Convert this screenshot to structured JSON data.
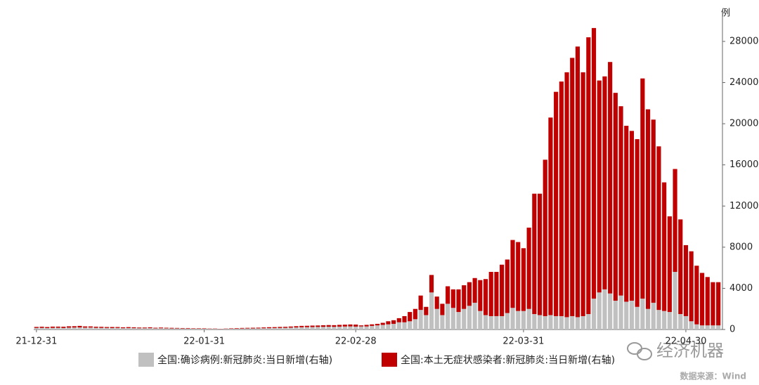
{
  "chart_data": {
    "type": "stacked_bar",
    "y_unit": "例",
    "categories": [
      "21-12-31",
      null,
      null,
      null,
      null,
      null,
      null,
      null,
      null,
      null,
      null,
      null,
      null,
      null,
      null,
      null,
      null,
      null,
      null,
      null,
      null,
      null,
      null,
      null,
      null,
      null,
      null,
      null,
      null,
      null,
      null,
      "22-01-31",
      null,
      null,
      null,
      null,
      null,
      null,
      null,
      null,
      null,
      null,
      null,
      null,
      null,
      null,
      null,
      null,
      null,
      null,
      null,
      null,
      null,
      null,
      null,
      null,
      null,
      null,
      null,
      "22-02-28",
      null,
      null,
      null,
      null,
      null,
      null,
      null,
      null,
      null,
      null,
      null,
      null,
      null,
      null,
      null,
      null,
      null,
      null,
      null,
      null,
      null,
      null,
      null,
      null,
      null,
      null,
      null,
      null,
      null,
      null,
      "22-03-31",
      null,
      null,
      null,
      null,
      null,
      null,
      null,
      null,
      null,
      null,
      null,
      null,
      null,
      null,
      null,
      null,
      null,
      null,
      null,
      null,
      null,
      null,
      null,
      null,
      null,
      null,
      null,
      null,
      null,
      "22-04-30",
      null,
      null,
      null,
      null,
      null,
      null
    ],
    "series": [
      {
        "name": "全国:确诊病例:新冠肺炎:当日新增(右轴)",
        "color": "#c0c0c0",
        "axis": "y2",
        "values": [
          150,
          160,
          140,
          160,
          170,
          150,
          180,
          190,
          200,
          180,
          190,
          170,
          160,
          150,
          140,
          150,
          130,
          140,
          130,
          120,
          120,
          130,
          110,
          120,
          110,
          100,
          100,
          90,
          90,
          80,
          80,
          70,
          60,
          60,
          50,
          60,
          70,
          80,
          90,
          100,
          100,
          110,
          120,
          130,
          140,
          150,
          160,
          180,
          200,
          220,
          230,
          240,
          250,
          260,
          270,
          260,
          280,
          290,
          300,
          280,
          300,
          300,
          350,
          400,
          450,
          500,
          550,
          700,
          700,
          800,
          1000,
          1900,
          1400,
          3600,
          2000,
          1400,
          2500,
          2100,
          1700,
          2000,
          2300,
          2600,
          1800,
          1400,
          1300,
          1300,
          1300,
          1600,
          2100,
          1800,
          1800,
          2000,
          1500,
          1400,
          1300,
          1400,
          1300,
          1300,
          1200,
          1300,
          1200,
          1300,
          1500,
          3000,
          3600,
          3900,
          3500,
          2800,
          3300,
          2700,
          2800,
          2200,
          3000,
          2000,
          2600,
          1900,
          1800,
          1700,
          5600,
          1500,
          1300,
          800,
          500,
          400,
          400,
          400,
          400
        ]
      },
      {
        "name": "全国:本土无症状感染者:新冠肺炎:当日新增(右轴)",
        "color": "#c00000",
        "axis": "y2",
        "values": [
          100,
          110,
          100,
          120,
          110,
          120,
          130,
          130,
          150,
          120,
          110,
          100,
          100,
          90,
          100,
          90,
          80,
          90,
          80,
          70,
          70,
          80,
          60,
          70,
          60,
          60,
          50,
          50,
          50,
          40,
          40,
          40,
          30,
          30,
          20,
          30,
          40,
          50,
          60,
          60,
          70,
          70,
          80,
          90,
          90,
          100,
          100,
          110,
          120,
          130,
          130,
          140,
          140,
          150,
          160,
          160,
          170,
          180,
          190,
          200,
          100,
          150,
          150,
          150,
          200,
          300,
          350,
          400,
          600,
          900,
          1000,
          1400,
          800,
          1700,
          1200,
          1100,
          1700,
          1800,
          2200,
          2300,
          2300,
          2400,
          3000,
          3500,
          4300,
          4300,
          5000,
          5200,
          6600,
          6700,
          6100,
          7900,
          11700,
          11800,
          15200,
          19200,
          21800,
          22800,
          23800,
          25100,
          26300,
          23700,
          26900,
          26300,
          20600,
          20700,
          22500,
          20200,
          18400,
          17100,
          16500,
          16300,
          21400,
          19400,
          17800,
          15900,
          12500,
          9300,
          10000,
          9200,
          6900,
          6800,
          5700,
          5100,
          4700,
          4200,
          4200
        ]
      }
    ],
    "y2lim": [
      0,
      31000
    ],
    "y2ticks": [
      0,
      4000,
      8000,
      12000,
      16000,
      20000,
      24000,
      28000
    ],
    "legend": "bottom",
    "watermark": "经济机器",
    "source": "数据来源：Wind"
  }
}
